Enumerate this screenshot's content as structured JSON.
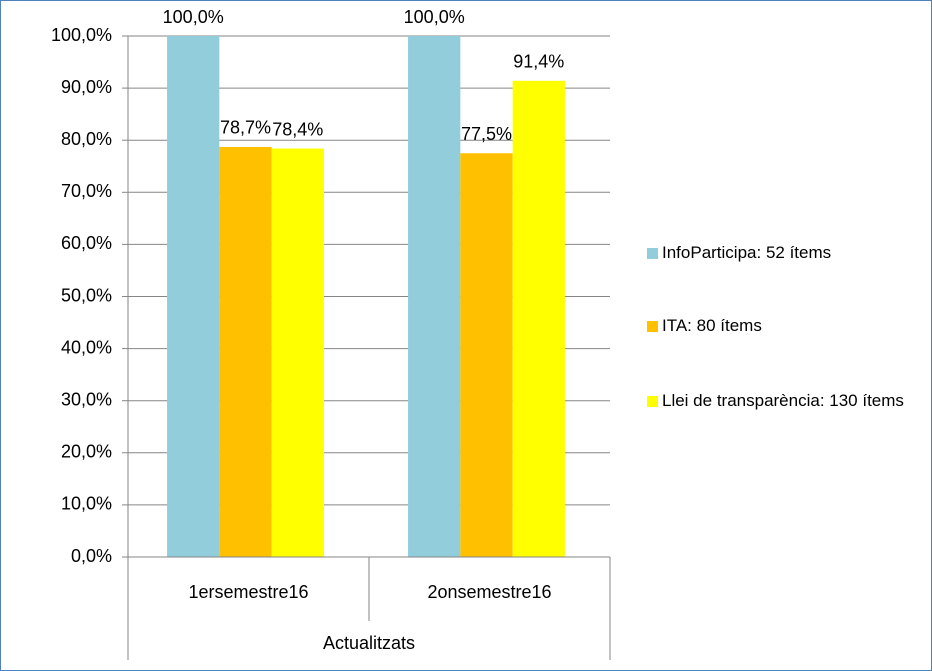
{
  "chart_data": {
    "type": "bar",
    "xlabel": "Actualitzats",
    "categories": [
      "1ersemestre16",
      "2onsemestre16"
    ],
    "series": [
      {
        "name": "InfoParticipa: 52 ítems",
        "color": "#92cddc",
        "values": [
          100.0,
          100.0
        ],
        "value_labels": [
          "100,0%",
          "100,0%"
        ]
      },
      {
        "name": "ITA: 80 ítems",
        "color": "#ffc000",
        "values": [
          78.7,
          77.5
        ],
        "value_labels": [
          "78,7%",
          "77,5%"
        ]
      },
      {
        "name": "Llei de transparència: 130 ítems",
        "color": "#ffff00",
        "values": [
          78.4,
          91.4
        ],
        "value_labels": [
          "78,4%",
          "91,4%"
        ]
      }
    ],
    "ylim": [
      0,
      100
    ],
    "yticks": [
      {
        "value": 0,
        "label": "0,0%"
      },
      {
        "value": 10,
        "label": "10,0%"
      },
      {
        "value": 20,
        "label": "20,0%"
      },
      {
        "value": 30,
        "label": "30,0%"
      },
      {
        "value": 40,
        "label": "40,0%"
      },
      {
        "value": 50,
        "label": "50,0%"
      },
      {
        "value": 60,
        "label": "60,0%"
      },
      {
        "value": 70,
        "label": "70,0%"
      },
      {
        "value": 80,
        "label": "80,0%"
      },
      {
        "value": 90,
        "label": "90,0%"
      },
      {
        "value": 100,
        "label": "100,0%"
      }
    ],
    "grid": true,
    "legend": "right"
  }
}
